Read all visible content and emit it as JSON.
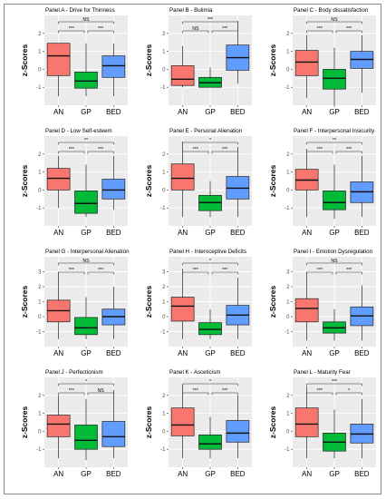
{
  "chart_data": [
    {
      "type": "box",
      "title": "Panel A - Drive for Thinness",
      "ylabel": "z-Scores",
      "ylim": [
        -2,
        3
      ],
      "yticks": [
        -1,
        0,
        1,
        2
      ],
      "categories": [
        "AN",
        "GP",
        "BED"
      ],
      "boxes": [
        {
          "min": -1.5,
          "q1": -0.35,
          "median": 0.75,
          "q3": 1.45,
          "max": 1.45
        },
        {
          "min": -1.5,
          "q1": -1.05,
          "median": -0.65,
          "q3": -0.15,
          "max": 1.45
        },
        {
          "min": -1.5,
          "q1": -0.45,
          "median": 0.2,
          "q3": 0.75,
          "max": 1.45
        }
      ],
      "brackets": [
        {
          "from": 0,
          "to": 2,
          "label": "NS"
        },
        {
          "from": 0,
          "to": 1,
          "label": "***"
        },
        {
          "from": 1,
          "to": 2,
          "label": "***"
        }
      ]
    },
    {
      "type": "box",
      "title": "Panel B - Bulimia",
      "ylabel": "z-Scores",
      "ylim": [
        -2,
        3
      ],
      "yticks": [
        -1,
        0,
        1,
        2
      ],
      "categories": [
        "AN",
        "GP",
        "BED"
      ],
      "boxes": [
        {
          "min": -1.0,
          "q1": -0.9,
          "median": -0.55,
          "q3": 0.2,
          "max": 1.3
        },
        {
          "min": -1.0,
          "q1": -1.0,
          "median": -0.75,
          "q3": -0.45,
          "max": 0.1
        },
        {
          "min": -0.8,
          "q1": -0.05,
          "median": 0.65,
          "q3": 1.35,
          "max": 2.7
        }
      ],
      "brackets": [
        {
          "from": 0,
          "to": 2,
          "label": "***"
        },
        {
          "from": 0,
          "to": 1,
          "label": "NS"
        },
        {
          "from": 1,
          "to": 2,
          "label": "***"
        }
      ]
    },
    {
      "type": "box",
      "title": "Panel C - Body dissatisfaction",
      "ylabel": "z-Scores",
      "ylim": [
        -2,
        3
      ],
      "yticks": [
        -1,
        0,
        1,
        2
      ],
      "categories": [
        "AN",
        "GP",
        "BED"
      ],
      "boxes": [
        {
          "min": -1.6,
          "q1": -0.35,
          "median": 0.4,
          "q3": 1.05,
          "max": 1.9
        },
        {
          "min": -2.0,
          "q1": -1.1,
          "median": -0.5,
          "q3": 0.0,
          "max": 1.2
        },
        {
          "min": -1.3,
          "q1": 0.05,
          "median": 0.55,
          "q3": 1.0,
          "max": 1.9
        }
      ],
      "brackets": [
        {
          "from": 0,
          "to": 2,
          "label": "NS"
        },
        {
          "from": 0,
          "to": 1,
          "label": "***"
        },
        {
          "from": 1,
          "to": 2,
          "label": "***"
        }
      ]
    },
    {
      "type": "box",
      "title": "Panel D - Low Self-esteem",
      "ylabel": "z-Scores",
      "ylim": [
        -2,
        3
      ],
      "yticks": [
        -1,
        0,
        1,
        2
      ],
      "categories": [
        "AN",
        "GP",
        "BED"
      ],
      "boxes": [
        {
          "min": -1.0,
          "q1": 0.0,
          "median": 0.65,
          "q3": 1.2,
          "max": 1.9
        },
        {
          "min": -1.5,
          "q1": -1.3,
          "median": -0.75,
          "q3": -0.05,
          "max": 1.4
        },
        {
          "min": -1.1,
          "q1": -0.5,
          "median": 0.0,
          "q3": 0.6,
          "max": 1.9
        }
      ],
      "brackets": [
        {
          "from": 0,
          "to": 2,
          "label": "**"
        },
        {
          "from": 0,
          "to": 1,
          "label": "***"
        },
        {
          "from": 1,
          "to": 2,
          "label": "***"
        }
      ]
    },
    {
      "type": "box",
      "title": "Panel E - Personal Alienation",
      "ylabel": "z-Scores",
      "ylim": [
        -2,
        3
      ],
      "yticks": [
        -1,
        0,
        1,
        2
      ],
      "categories": [
        "AN",
        "GP",
        "BED"
      ],
      "boxes": [
        {
          "min": -1.5,
          "q1": 0.0,
          "median": 0.65,
          "q3": 1.45,
          "max": 2.7
        },
        {
          "min": -1.5,
          "q1": -1.15,
          "median": -0.7,
          "q3": -0.3,
          "max": 0.5
        },
        {
          "min": -1.5,
          "q1": -0.5,
          "median": 0.1,
          "q3": 0.75,
          "max": 2.4
        }
      ],
      "brackets": [
        {
          "from": 0,
          "to": 2,
          "label": "*"
        },
        {
          "from": 0,
          "to": 1,
          "label": "***"
        },
        {
          "from": 1,
          "to": 2,
          "label": "***"
        }
      ]
    },
    {
      "type": "box",
      "title": "Panel F - Interpersonal Insicurity",
      "ylabel": "z-Scores",
      "ylim": [
        -2,
        3
      ],
      "yticks": [
        -1,
        0,
        1,
        2
      ],
      "categories": [
        "AN",
        "GP",
        "BED"
      ],
      "boxes": [
        {
          "min": -1.5,
          "q1": 0.0,
          "median": 0.55,
          "q3": 1.15,
          "max": 2.3
        },
        {
          "min": -1.6,
          "q1": -1.1,
          "median": -0.7,
          "q3": -0.05,
          "max": 1.4
        },
        {
          "min": -1.5,
          "q1": -0.7,
          "median": -0.1,
          "q3": 0.45,
          "max": 1.9
        }
      ],
      "brackets": [
        {
          "from": 0,
          "to": 2,
          "label": "**"
        },
        {
          "from": 0,
          "to": 1,
          "label": "***"
        },
        {
          "from": 1,
          "to": 2,
          "label": "***"
        }
      ]
    },
    {
      "type": "box",
      "title": "Panel G - Interpersonal Alienation",
      "ylabel": "z-Scores",
      "ylim": [
        -2,
        4
      ],
      "yticks": [
        -1,
        0,
        1,
        2,
        3
      ],
      "categories": [
        "AN",
        "GP",
        "BED"
      ],
      "boxes": [
        {
          "min": -1.5,
          "q1": -0.35,
          "median": 0.4,
          "q3": 1.1,
          "max": 3.0
        },
        {
          "min": -1.5,
          "q1": -1.2,
          "median": -0.75,
          "q3": -0.05,
          "max": 1.3
        },
        {
          "min": -1.5,
          "q1": -0.55,
          "median": 0.0,
          "q3": 0.5,
          "max": 2.0
        }
      ],
      "brackets": [
        {
          "from": 0,
          "to": 2,
          "label": "NS"
        },
        {
          "from": 0,
          "to": 1,
          "label": "***"
        },
        {
          "from": 1,
          "to": 2,
          "label": "***"
        }
      ]
    },
    {
      "type": "box",
      "title": "Panel H - Interoceptive Deficits",
      "ylabel": "z-Scores",
      "ylim": [
        -2,
        4
      ],
      "yticks": [
        -1,
        0,
        1,
        2,
        3
      ],
      "categories": [
        "AN",
        "GP",
        "BED"
      ],
      "boxes": [
        {
          "min": -1.5,
          "q1": -0.3,
          "median": 0.7,
          "q3": 1.3,
          "max": 3.2
        },
        {
          "min": -1.5,
          "q1": -1.2,
          "median": -0.85,
          "q3": -0.4,
          "max": 0.5
        },
        {
          "min": -1.5,
          "q1": -0.55,
          "median": 0.1,
          "q3": 0.75,
          "max": 2.6
        }
      ],
      "brackets": [
        {
          "from": 0,
          "to": 2,
          "label": "*"
        },
        {
          "from": 0,
          "to": 1,
          "label": "***"
        },
        {
          "from": 1,
          "to": 2,
          "label": "***"
        }
      ]
    },
    {
      "type": "box",
      "title": "Panel I - Emotion Dysregulation",
      "ylabel": "z-Scores",
      "ylim": [
        -2,
        4
      ],
      "yticks": [
        -1,
        0,
        1,
        2,
        3
      ],
      "categories": [
        "AN",
        "GP",
        "BED"
      ],
      "boxes": [
        {
          "min": -1.6,
          "q1": -0.35,
          "median": 0.55,
          "q3": 1.2,
          "max": 3.0
        },
        {
          "min": -1.6,
          "q1": -1.1,
          "median": -0.75,
          "q3": -0.35,
          "max": 0.5
        },
        {
          "min": -1.6,
          "q1": -0.6,
          "median": 0.05,
          "q3": 0.65,
          "max": 2.1
        }
      ],
      "brackets": [
        {
          "from": 0,
          "to": 2,
          "label": "NS"
        },
        {
          "from": 0,
          "to": 1,
          "label": "***"
        },
        {
          "from": 1,
          "to": 2,
          "label": "***"
        }
      ]
    },
    {
      "type": "box",
      "title": "Panel J - Perfectionism",
      "ylabel": "z-Scores",
      "ylim": [
        -2,
        3
      ],
      "yticks": [
        -1,
        0,
        1,
        2
      ],
      "categories": [
        "AN",
        "GP",
        "BED"
      ],
      "boxes": [
        {
          "min": -1.5,
          "q1": -0.3,
          "median": 0.4,
          "q3": 0.9,
          "max": 2.0
        },
        {
          "min": -1.6,
          "q1": -1.0,
          "median": -0.5,
          "q3": 0.35,
          "max": 1.8
        },
        {
          "min": -1.5,
          "q1": -0.85,
          "median": -0.3,
          "q3": 0.55,
          "max": 2.3
        }
      ],
      "brackets": [
        {
          "from": 0,
          "to": 2,
          "label": "*"
        },
        {
          "from": 0,
          "to": 1,
          "label": "***"
        },
        {
          "from": 1,
          "to": 2,
          "label": "NS"
        }
      ]
    },
    {
      "type": "box",
      "title": "Panel K - Asceticism",
      "ylabel": "z-Scores",
      "ylim": [
        -2,
        3
      ],
      "yticks": [
        -1,
        0,
        1,
        2
      ],
      "categories": [
        "AN",
        "GP",
        "BED"
      ],
      "boxes": [
        {
          "min": -1.5,
          "q1": -0.25,
          "median": 0.35,
          "q3": 1.3,
          "max": 2.6
        },
        {
          "min": -1.5,
          "q1": -1.0,
          "median": -0.7,
          "q3": -0.2,
          "max": 0.8
        },
        {
          "min": -1.5,
          "q1": -0.6,
          "median": -0.1,
          "q3": 0.6,
          "max": 2.0
        }
      ],
      "brackets": [
        {
          "from": 0,
          "to": 2,
          "label": "*"
        },
        {
          "from": 0,
          "to": 1,
          "label": "***"
        },
        {
          "from": 1,
          "to": 2,
          "label": "***"
        }
      ]
    },
    {
      "type": "box",
      "title": "Panel L - Maturity Fear",
      "ylabel": "z-Scores",
      "ylim": [
        -2,
        3
      ],
      "yticks": [
        -1,
        0,
        1,
        2
      ],
      "categories": [
        "AN",
        "GP",
        "BED"
      ],
      "boxes": [
        {
          "min": -1.5,
          "q1": -0.3,
          "median": 0.4,
          "q3": 1.3,
          "max": 2.5
        },
        {
          "min": -1.5,
          "q1": -1.1,
          "median": -0.6,
          "q3": -0.1,
          "max": 1.2
        },
        {
          "min": -1.5,
          "q1": -0.65,
          "median": -0.15,
          "q3": 0.4,
          "max": 1.8
        }
      ],
      "brackets": [
        {
          "from": 0,
          "to": 2,
          "label": "***"
        },
        {
          "from": 0,
          "to": 1,
          "label": "***"
        },
        {
          "from": 1,
          "to": 2,
          "label": "*"
        }
      ]
    }
  ],
  "colors": {
    "AN": "#f8766d",
    "GP": "#00ba38",
    "BED": "#619cff",
    "panel_bg": "#ebebeb",
    "grid": "#ffffff"
  }
}
